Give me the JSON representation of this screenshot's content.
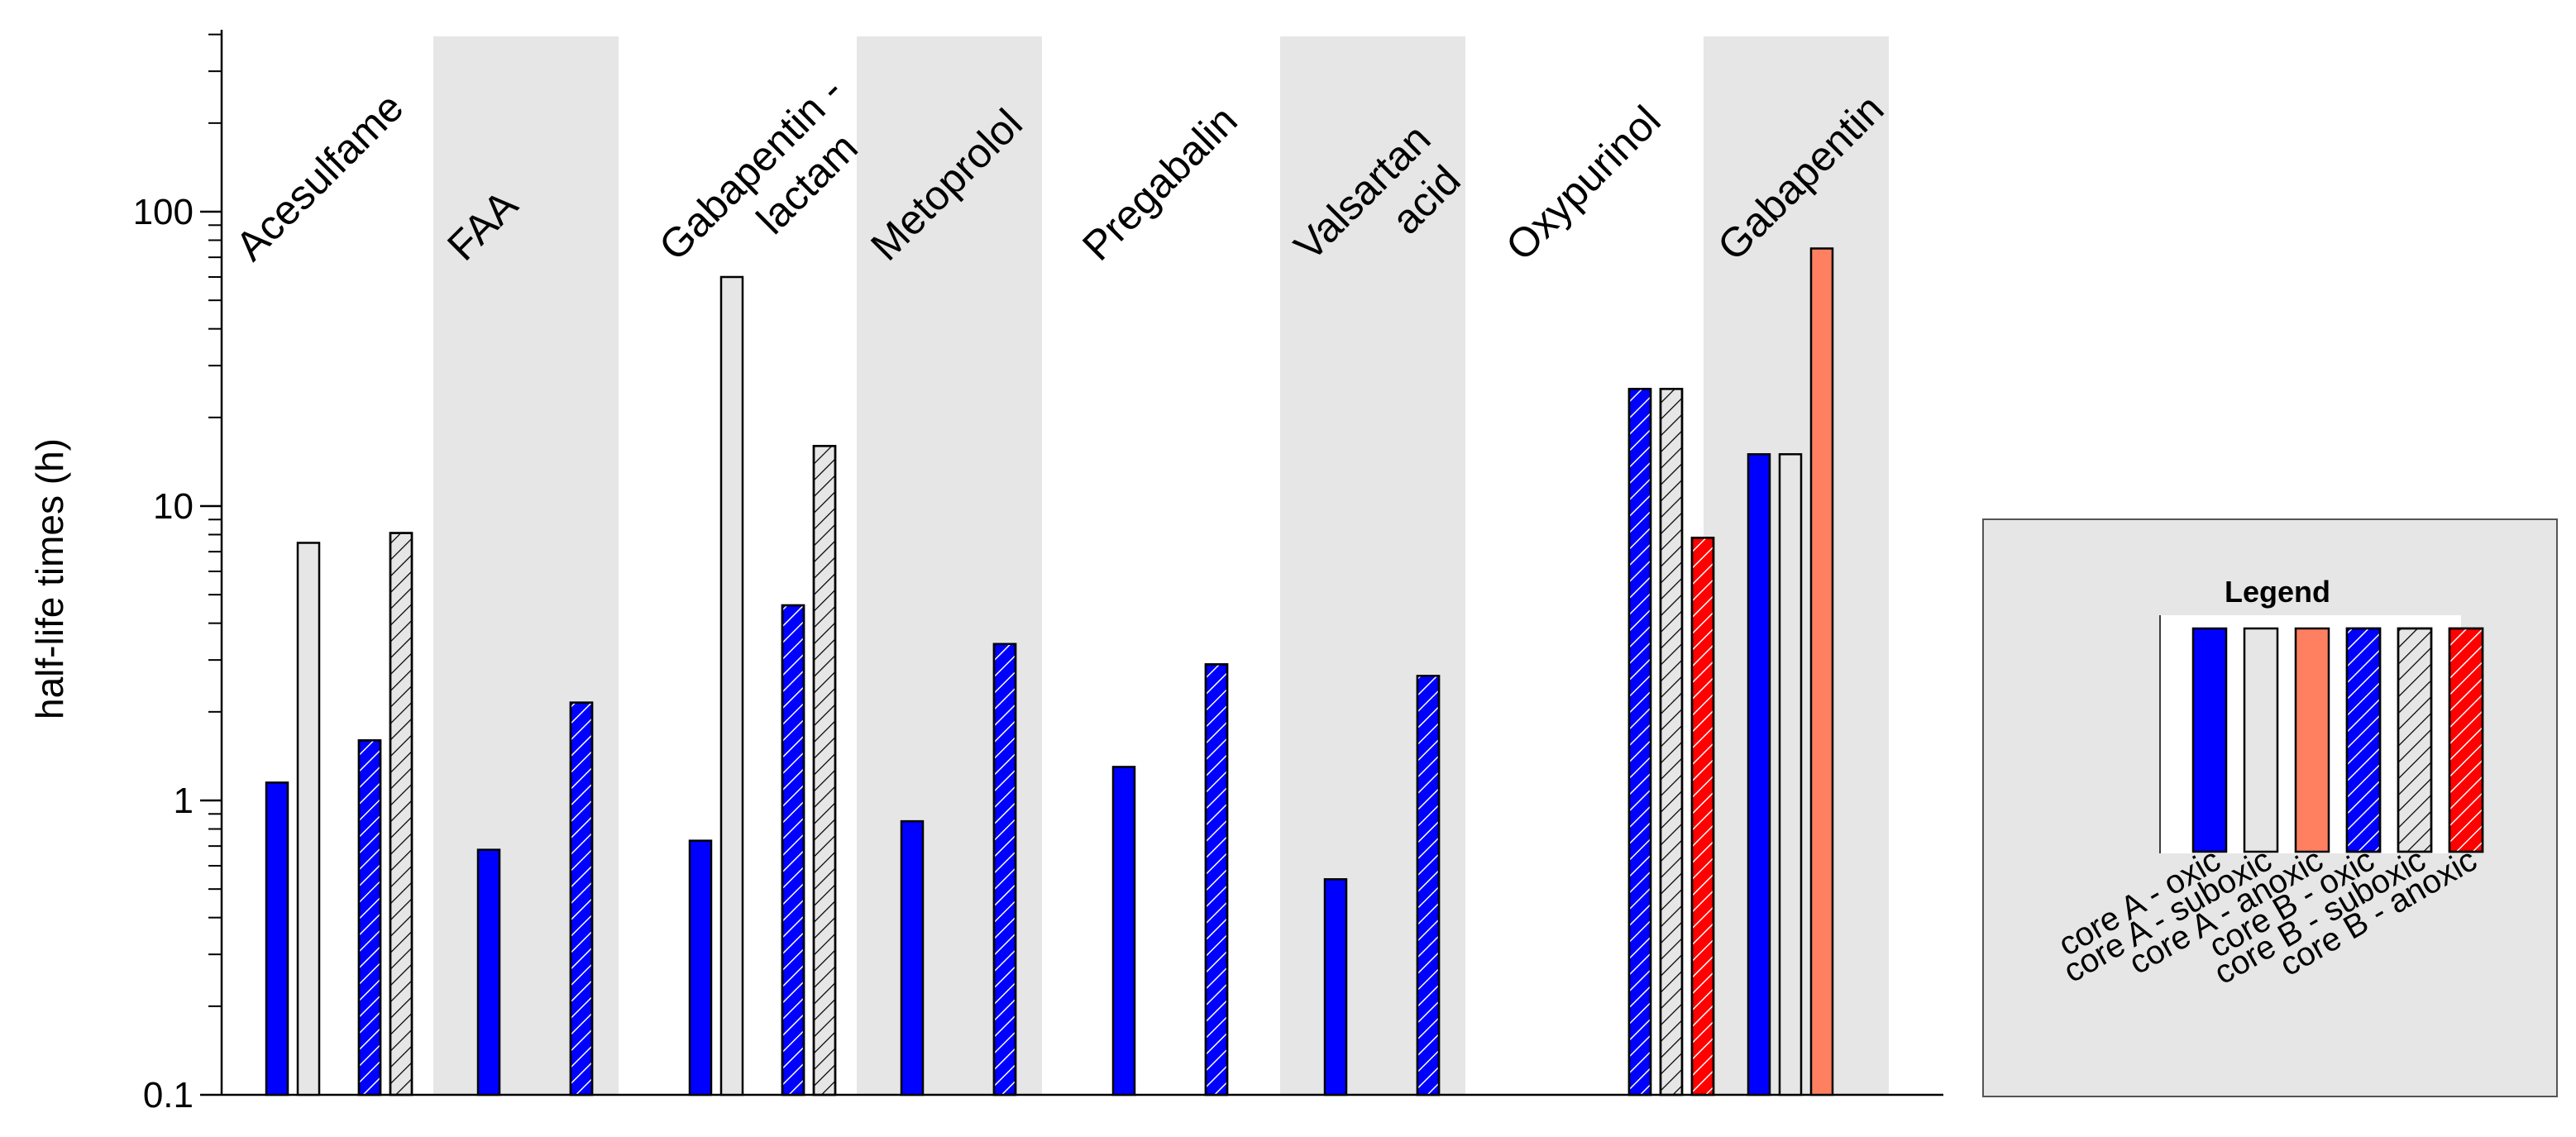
{
  "chart_data": {
    "type": "bar",
    "scale": "log",
    "ylabel": "half-life times (h)",
    "ylim": [
      0.1,
      400
    ],
    "yticks": [
      0.1,
      1,
      10,
      100
    ],
    "ytick_labels": [
      "0.1",
      "1",
      "10",
      "100"
    ],
    "groups": [
      {
        "label": [
          "Acesulfame"
        ],
        "shaded": false,
        "bars": [
          {
            "series": "A-oxic",
            "value": 1.15
          },
          {
            "series": "A-suboxic",
            "value": 7.5
          },
          {
            "series": "B-oxic",
            "value": 1.6
          },
          {
            "series": "B-suboxic",
            "value": 8.1
          }
        ]
      },
      {
        "label": [
          "FAA"
        ],
        "shaded": true,
        "bars": [
          {
            "series": "A-oxic",
            "value": 0.68
          },
          {
            "series": "B-oxic",
            "value": 2.15
          }
        ]
      },
      {
        "label": [
          "Gabapentin -",
          "lactam"
        ],
        "shaded": false,
        "bars": [
          {
            "series": "A-oxic",
            "value": 0.73
          },
          {
            "series": "A-suboxic",
            "value": 60
          },
          {
            "series": "B-oxic",
            "value": 4.6
          },
          {
            "series": "B-suboxic",
            "value": 16
          }
        ]
      },
      {
        "label": [
          "Metoprolol"
        ],
        "shaded": true,
        "bars": [
          {
            "series": "A-oxic",
            "value": 0.85
          },
          {
            "series": "B-oxic",
            "value": 3.4
          }
        ]
      },
      {
        "label": [
          "Pregabalin"
        ],
        "shaded": false,
        "bars": [
          {
            "series": "A-oxic",
            "value": 1.3
          },
          {
            "series": "B-oxic",
            "value": 2.9
          }
        ]
      },
      {
        "label": [
          "Valsartan",
          "acid"
        ],
        "shaded": true,
        "bars": [
          {
            "series": "A-oxic",
            "value": 0.54
          },
          {
            "series": "B-oxic",
            "value": 2.65
          }
        ]
      },
      {
        "label": [
          "Oxypurinol"
        ],
        "shaded": false,
        "bars": [
          {
            "series": "B-oxic",
            "value": 25
          },
          {
            "series": "B-suboxic",
            "value": 25
          },
          {
            "series": "B-anoxic",
            "value": 7.8
          }
        ]
      },
      {
        "label": [
          "Gabapentin"
        ],
        "shaded": true,
        "bars": [
          {
            "series": "A-oxic",
            "value": 15
          },
          {
            "series": "A-suboxic",
            "value": 15
          },
          {
            "series": "A-anoxic",
            "value": 75
          }
        ]
      }
    ],
    "series": [
      {
        "key": "A-oxic",
        "name": "core A - oxic",
        "color": "#0000ff",
        "hatch": false
      },
      {
        "key": "A-suboxic",
        "name": "core A - suboxic",
        "color": "#e6e6e6",
        "hatch": false
      },
      {
        "key": "A-anoxic",
        "name": "core A - anoxic",
        "color": "#ff8060",
        "hatch": false
      },
      {
        "key": "B-oxic",
        "name": "core B - oxic",
        "color": "#0000ff",
        "hatch": true
      },
      {
        "key": "B-suboxic",
        "name": "core B - suboxic",
        "color": "#e6e6e6",
        "hatch": true
      },
      {
        "key": "B-anoxic",
        "name": "core B - anoxic",
        "color": "#ff0000",
        "hatch": true
      }
    ],
    "legend": {
      "title": "Legend",
      "position": "right"
    },
    "colors": {
      "group_shade": "#e6e6e6",
      "legend_bg": "#e6e6e6",
      "axis": "#000000"
    }
  }
}
